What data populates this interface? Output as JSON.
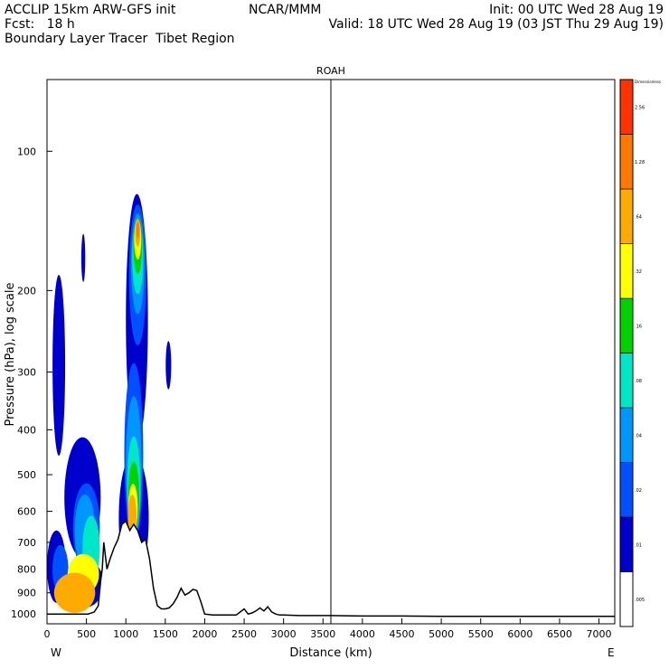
{
  "header": {
    "line1_left": "ACCLIP 15km ARW-GFS init",
    "line1_mid": "NCAR/MMM",
    "line1_right": "Init: 00 UTC Wed 28 Aug 19",
    "line2_left": "Fcst:   18 h",
    "line2_right": "Valid: 18 UTC Wed 28 Aug 19 (03 JST Thu 29 Aug 19)",
    "line3_left": "Boundary Layer Tracer  Tibet Region"
  },
  "chart_data": {
    "type": "area",
    "title": "ROAH",
    "xlabel": "Distance (km)",
    "ylabel": "Pressure (hPa), log scale",
    "x_left_label": "W",
    "x_right_label": "E",
    "xlim": [
      0,
      7200
    ],
    "ylim": [
      1050,
      70
    ],
    "y_scale": "log",
    "x_ticks": [
      0,
      500,
      1000,
      1500,
      2000,
      2500,
      3000,
      3500,
      4000,
      4500,
      5000,
      5500,
      6000,
      6500,
      7000
    ],
    "y_ticks": [
      100,
      200,
      300,
      400,
      500,
      600,
      700,
      800,
      900,
      1000
    ],
    "vertical_line_x": 3600,
    "colorbar": {
      "unit_label": "Dimensionless",
      "levels": [
        ".005",
        ".01",
        ".02",
        ".04",
        ".08",
        ".16",
        ".32",
        ".64",
        "1.28",
        "2.56"
      ],
      "colors": [
        "#ffffff",
        "#0000cd",
        "#0050ff",
        "#0096ff",
        "#00e6c8",
        "#00d200",
        "#ffff00",
        "#ffaa00",
        "#ff7800",
        "#ff3200"
      ]
    },
    "terrain": {
      "x": [
        0,
        450,
        520,
        600,
        650,
        680,
        700,
        720,
        760,
        800,
        850,
        900,
        950,
        1000,
        1050,
        1100,
        1150,
        1200,
        1250,
        1300,
        1350,
        1400,
        1450,
        1500,
        1550,
        1600,
        1650,
        1700,
        1750,
        1800,
        1850,
        1900,
        1950,
        2000,
        2100,
        2200,
        2300,
        2400,
        2450,
        2500,
        2550,
        2600,
        2650,
        2700,
        2750,
        2800,
        2850,
        2900,
        2950,
        3000,
        3200,
        3600,
        4000,
        4500,
        5000,
        5500,
        6000,
        6500,
        7200
      ],
      "p": [
        1000,
        1000,
        1000,
        990,
        960,
        850,
        800,
        700,
        800,
        760,
        720,
        690,
        640,
        630,
        660,
        640,
        660,
        700,
        690,
        760,
        880,
        960,
        975,
        975,
        970,
        950,
        920,
        880,
        910,
        900,
        885,
        890,
        940,
        1000,
        1005,
        1005,
        1005,
        1005,
        990,
        975,
        1000,
        995,
        985,
        970,
        985,
        965,
        990,
        1000,
        1005,
        1005,
        1008,
        1008,
        1010,
        1010,
        1012,
        1012,
        1012,
        1012,
        1012
      ]
    },
    "tracer_blobs": [
      {
        "level": 1,
        "x": 1140,
        "p": 230,
        "dx": 140,
        "lp": 0.62
      },
      {
        "level": 1,
        "x": 150,
        "p": 290,
        "dx": 80,
        "lp": 0.45
      },
      {
        "level": 1,
        "x": 450,
        "p": 560,
        "dx": 230,
        "lp": 0.3
      },
      {
        "level": 1,
        "x": 1100,
        "p": 620,
        "dx": 190,
        "lp": 0.32
      },
      {
        "level": 1,
        "x": 120,
        "p": 790,
        "dx": 120,
        "lp": 0.18
      },
      {
        "level": 1,
        "x": 470,
        "p": 860,
        "dx": 250,
        "lp": 0.12
      },
      {
        "level": 1,
        "x": 460,
        "p": 170,
        "dx": 25,
        "lp": 0.12
      },
      {
        "level": 1,
        "x": 1540,
        "p": 290,
        "dx": 35,
        "lp": 0.12
      },
      {
        "level": 2,
        "x": 1150,
        "p": 185,
        "dx": 110,
        "lp": 0.35
      },
      {
        "level": 2,
        "x": 1100,
        "p": 450,
        "dx": 120,
        "lp": 0.45
      },
      {
        "level": 2,
        "x": 500,
        "p": 650,
        "dx": 170,
        "lp": 0.22
      },
      {
        "level": 2,
        "x": 170,
        "p": 800,
        "dx": 100,
        "lp": 0.12
      },
      {
        "level": 3,
        "x": 1150,
        "p": 175,
        "dx": 85,
        "lp": 0.25
      },
      {
        "level": 3,
        "x": 1100,
        "p": 480,
        "dx": 100,
        "lp": 0.35
      },
      {
        "level": 3,
        "x": 480,
        "p": 660,
        "dx": 130,
        "lp": 0.18
      },
      {
        "level": 4,
        "x": 1150,
        "p": 170,
        "dx": 70,
        "lp": 0.18
      },
      {
        "level": 4,
        "x": 1100,
        "p": 530,
        "dx": 85,
        "lp": 0.25
      },
      {
        "level": 4,
        "x": 560,
        "p": 720,
        "dx": 110,
        "lp": 0.16
      },
      {
        "level": 5,
        "x": 1150,
        "p": 160,
        "dx": 55,
        "lp": 0.14
      },
      {
        "level": 5,
        "x": 1100,
        "p": 560,
        "dx": 70,
        "lp": 0.18
      },
      {
        "level": 6,
        "x": 1150,
        "p": 155,
        "dx": 45,
        "lp": 0.1
      },
      {
        "level": 6,
        "x": 1090,
        "p": 590,
        "dx": 60,
        "lp": 0.12
      },
      {
        "level": 6,
        "x": 460,
        "p": 820,
        "dx": 200,
        "lp": 0.1
      },
      {
        "level": 7,
        "x": 1150,
        "p": 150,
        "dx": 32,
        "lp": 0.07
      },
      {
        "level": 7,
        "x": 1080,
        "p": 610,
        "dx": 55,
        "lp": 0.1
      },
      {
        "level": 7,
        "x": 350,
        "p": 900,
        "dx": 260,
        "lp": 0.1
      },
      {
        "level": 8,
        "x": 1150,
        "p": 148,
        "dx": 18,
        "lp": 0.04
      }
    ]
  }
}
